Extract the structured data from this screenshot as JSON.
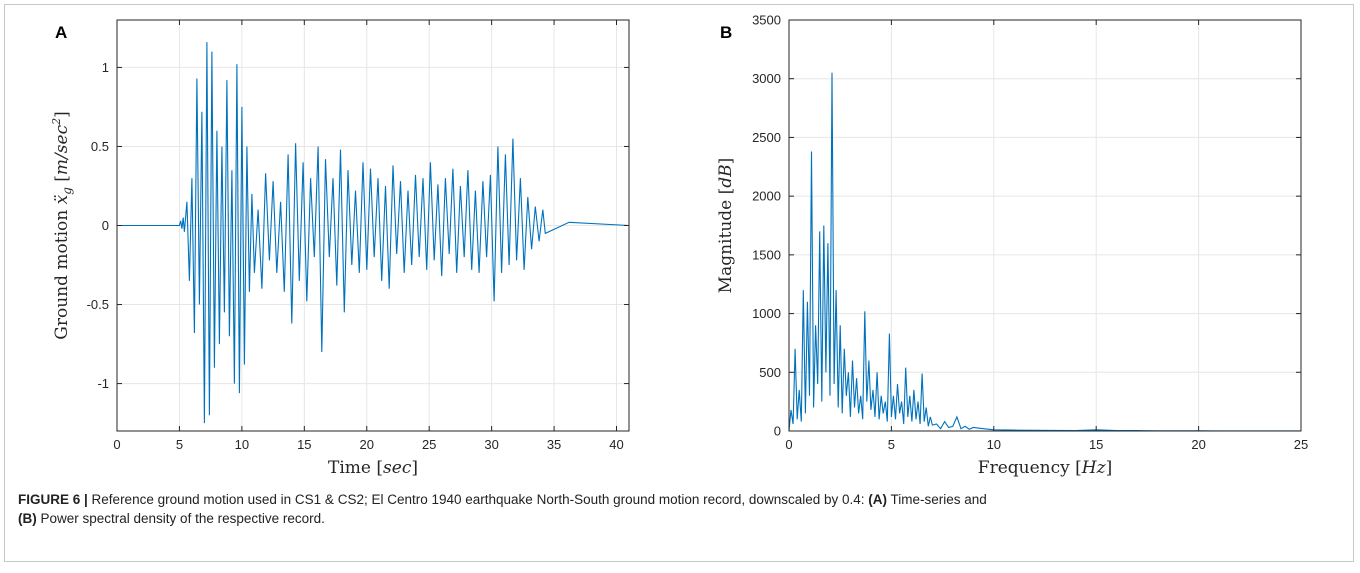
{
  "chart_data": [
    {
      "panel": "A",
      "type": "line",
      "xlabel_text": "Time",
      "xlabel_unit": "sec",
      "ylabel_text": "Ground motion",
      "ylabel_symbol": "ẍ",
      "ylabel_subscript": "g",
      "ylabel_unit": "m/sec",
      "ylabel_unit_exp": "2",
      "xlim": [
        0,
        41
      ],
      "ylim": [
        -1.3,
        1.3
      ],
      "xticks": [
        "0",
        "5",
        "10",
        "15",
        "20",
        "25",
        "30",
        "35",
        "40"
      ],
      "yticks": [
        "-1",
        "-0.5",
        "0",
        "0.5",
        "1"
      ],
      "xtick_values": [
        0,
        5,
        10,
        15,
        20,
        25,
        30,
        35,
        40
      ],
      "ytick_values": [
        -1,
        -0.5,
        0,
        0.5,
        1
      ],
      "grid": true,
      "series_color": "#0072BD",
      "x": [
        0,
        5.0,
        5.1,
        5.2,
        5.3,
        5.4,
        5.6,
        5.8,
        6.0,
        6.2,
        6.4,
        6.6,
        6.8,
        7.0,
        7.2,
        7.4,
        7.6,
        7.8,
        8.0,
        8.2,
        8.4,
        8.6,
        8.8,
        9.0,
        9.2,
        9.4,
        9.6,
        9.8,
        10.0,
        10.2,
        10.4,
        10.6,
        10.8,
        11.0,
        11.3,
        11.6,
        11.9,
        12.2,
        12.5,
        12.8,
        13.1,
        13.4,
        13.7,
        14.0,
        14.3,
        14.6,
        14.9,
        15.2,
        15.5,
        15.8,
        16.1,
        16.4,
        16.7,
        17.0,
        17.3,
        17.6,
        17.9,
        18.2,
        18.5,
        18.8,
        19.1,
        19.4,
        19.7,
        20.0,
        20.3,
        20.6,
        20.9,
        21.2,
        21.5,
        21.8,
        22.1,
        22.4,
        22.7,
        23.0,
        23.3,
        23.6,
        23.9,
        24.2,
        24.5,
        24.8,
        25.1,
        25.4,
        25.7,
        26.0,
        26.3,
        26.6,
        26.9,
        27.2,
        27.5,
        27.8,
        28.1,
        28.4,
        28.7,
        29.0,
        29.3,
        29.6,
        29.9,
        30.2,
        30.5,
        30.8,
        31.1,
        31.4,
        31.7,
        32.0,
        32.3,
        32.6,
        32.9,
        33.2,
        33.5,
        33.8,
        34.1,
        34.3,
        36.2,
        41
      ],
      "values": [
        0,
        0,
        0.03,
        -0.02,
        0.05,
        -0.04,
        0.15,
        -0.35,
        0.3,
        -0.68,
        0.93,
        -0.5,
        0.72,
        -1.25,
        1.16,
        -1.2,
        1.1,
        -0.9,
        0.6,
        -0.75,
        0.5,
        -0.55,
        0.92,
        -0.7,
        0.35,
        -1.0,
        1.02,
        -1.06,
        0.75,
        -0.88,
        0.5,
        -0.42,
        0.2,
        -0.3,
        0.1,
        -0.4,
        0.33,
        -0.22,
        0.28,
        -0.3,
        0.15,
        -0.42,
        0.45,
        -0.62,
        0.52,
        -0.35,
        0.4,
        -0.48,
        0.3,
        -0.2,
        0.5,
        -0.8,
        0.42,
        -0.2,
        0.3,
        -0.38,
        0.48,
        -0.55,
        0.35,
        -0.25,
        0.22,
        -0.3,
        0.4,
        -0.28,
        0.36,
        -0.2,
        0.3,
        -0.35,
        0.25,
        -0.4,
        0.38,
        -0.18,
        0.28,
        -0.3,
        0.22,
        -0.25,
        0.32,
        -0.2,
        0.3,
        -0.28,
        0.4,
        -0.22,
        0.26,
        -0.32,
        0.3,
        -0.18,
        0.36,
        -0.3,
        0.25,
        -0.2,
        0.35,
        -0.28,
        0.22,
        -0.3,
        0.28,
        -0.2,
        0.32,
        -0.48,
        0.5,
        -0.3,
        0.45,
        -0.25,
        0.55,
        -0.22,
        0.3,
        -0.28,
        0.18,
        -0.15,
        0.12,
        -0.1,
        0.1,
        -0.05,
        0.02,
        0
      ]
    },
    {
      "panel": "B",
      "type": "line",
      "xlabel_text": "Frequency",
      "xlabel_unit": "Hz",
      "ylabel_text": "Magnitude",
      "ylabel_unit": "dB",
      "xlim": [
        0,
        25
      ],
      "ylim": [
        0,
        3500
      ],
      "xticks": [
        "0",
        "5",
        "10",
        "15",
        "20",
        "25"
      ],
      "yticks": [
        "0",
        "500",
        "1000",
        "1500",
        "2000",
        "2500",
        "3000",
        "3500"
      ],
      "xtick_values": [
        0,
        5,
        10,
        15,
        20,
        25
      ],
      "ytick_values": [
        0,
        500,
        1000,
        1500,
        2000,
        2500,
        3000,
        3500
      ],
      "grid": true,
      "series_color": "#0072BD",
      "x": [
        0,
        0.1,
        0.2,
        0.3,
        0.4,
        0.5,
        0.6,
        0.7,
        0.8,
        0.9,
        1.0,
        1.1,
        1.2,
        1.3,
        1.4,
        1.5,
        1.6,
        1.7,
        1.8,
        1.9,
        2.0,
        2.1,
        2.2,
        2.3,
        2.4,
        2.5,
        2.6,
        2.7,
        2.8,
        2.9,
        3.0,
        3.1,
        3.2,
        3.3,
        3.4,
        3.5,
        3.6,
        3.7,
        3.8,
        3.9,
        4.0,
        4.1,
        4.2,
        4.3,
        4.4,
        4.5,
        4.6,
        4.7,
        4.8,
        4.9,
        5.0,
        5.1,
        5.2,
        5.3,
        5.4,
        5.5,
        5.6,
        5.7,
        5.8,
        5.9,
        6.0,
        6.1,
        6.2,
        6.3,
        6.4,
        6.5,
        6.6,
        6.7,
        6.8,
        6.9,
        7.0,
        7.2,
        7.4,
        7.6,
        7.8,
        8.0,
        8.2,
        8.4,
        8.6,
        8.8,
        9.0,
        9.5,
        10.0,
        11.0,
        12.0,
        13.0,
        14.0,
        15.0,
        16.0,
        17.0,
        18.0,
        19.0,
        20.0,
        21.0,
        22.0,
        23.0,
        24.0,
        25.0
      ],
      "values": [
        0,
        180,
        60,
        700,
        100,
        350,
        80,
        1200,
        150,
        1100,
        300,
        2380,
        200,
        900,
        400,
        1700,
        250,
        1750,
        500,
        1600,
        300,
        3050,
        400,
        1200,
        200,
        900,
        150,
        700,
        300,
        500,
        120,
        600,
        200,
        450,
        150,
        300,
        100,
        1020,
        250,
        600,
        180,
        350,
        120,
        500,
        100,
        300,
        150,
        250,
        80,
        830,
        120,
        300,
        100,
        400,
        150,
        250,
        60,
        540,
        120,
        300,
        80,
        350,
        100,
        250,
        60,
        490,
        80,
        200,
        40,
        120,
        50,
        60,
        20,
        80,
        30,
        40,
        120,
        20,
        40,
        15,
        30,
        20,
        10,
        8,
        6,
        5,
        4,
        10,
        3,
        3,
        2,
        2,
        2,
        1,
        1,
        1,
        1,
        1
      ]
    }
  ],
  "caption": {
    "figure_label": "FIGURE 6 |",
    "text_1": " Reference ground motion used in CS1 & CS2; El Centro 1940 earthquake North-South ground motion record, downscaled by 0.4: ",
    "label_a": "(A)",
    "text_2": " Time-series and",
    "label_b": "(B)",
    "text_3": " Power spectral density of the respective record."
  }
}
